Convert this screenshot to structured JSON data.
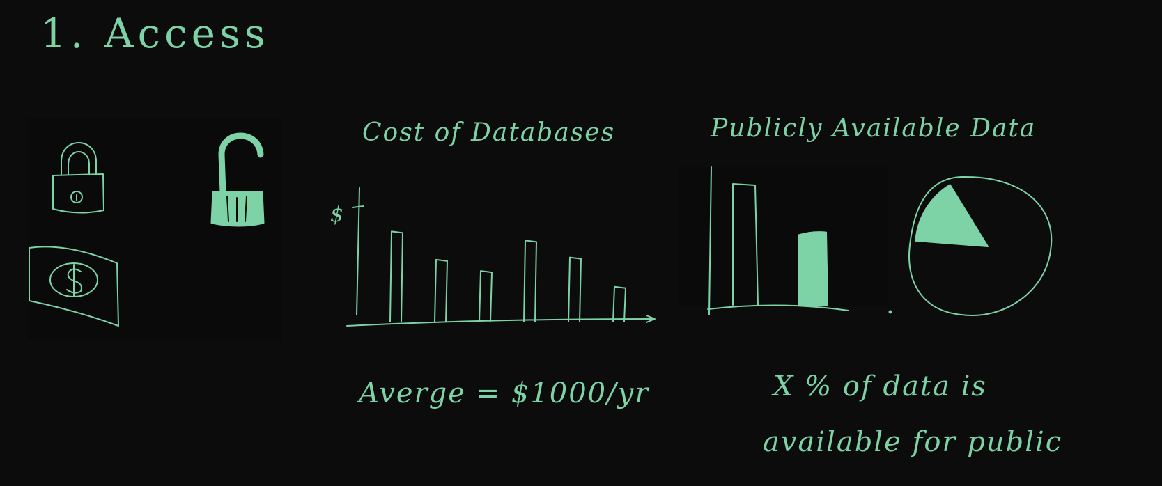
{
  "board": {
    "title": "1. Access",
    "ink_color": "#7dd3a5",
    "background": "#0c0c0c"
  },
  "icons": {
    "left_column": [
      "locked-padlock-icon",
      "dollar-bill-icon"
    ],
    "right_column": [
      "unlocked-padlock-icon"
    ]
  },
  "cost_chart": {
    "title": "Cost of Databases",
    "y_axis_symbol": "$",
    "note": "Averge = $1000/yr",
    "chart_data": {
      "type": "bar",
      "title": "Cost of Databases",
      "ylabel": "$",
      "values": [
        0.8,
        0.55,
        0.45,
        0.72,
        0.57,
        0.31
      ],
      "ylim": [
        0,
        1
      ]
    }
  },
  "public_chart": {
    "title": "Publicly Available Data",
    "note_line1": "X % of data is",
    "note_line2": "available for public",
    "chart_data": {
      "type": "bar",
      "title": "Publicly Available Data",
      "values": [
        1.0,
        0.6
      ],
      "filled": [
        false,
        true
      ],
      "ylim": [
        0,
        1
      ]
    },
    "pie_data": {
      "type": "pie",
      "public_fraction": 0.15,
      "public_filled": true
    }
  }
}
